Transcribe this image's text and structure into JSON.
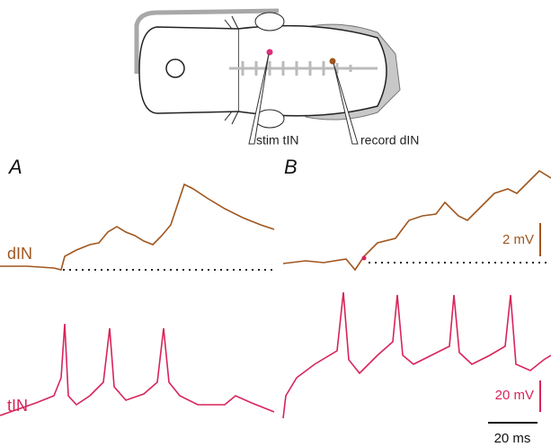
{
  "figure": {
    "schematic": {
      "stim_label": "stim tIN",
      "record_label": "record dIN"
    },
    "panels": [
      "A",
      "B"
    ],
    "traces": {
      "din_label": "dIN",
      "tin_label": "tIN"
    },
    "scale_bars": {
      "din_scale": "2 mV",
      "tin_scale": "20 mV",
      "time_scale": "20 ms"
    }
  }
}
